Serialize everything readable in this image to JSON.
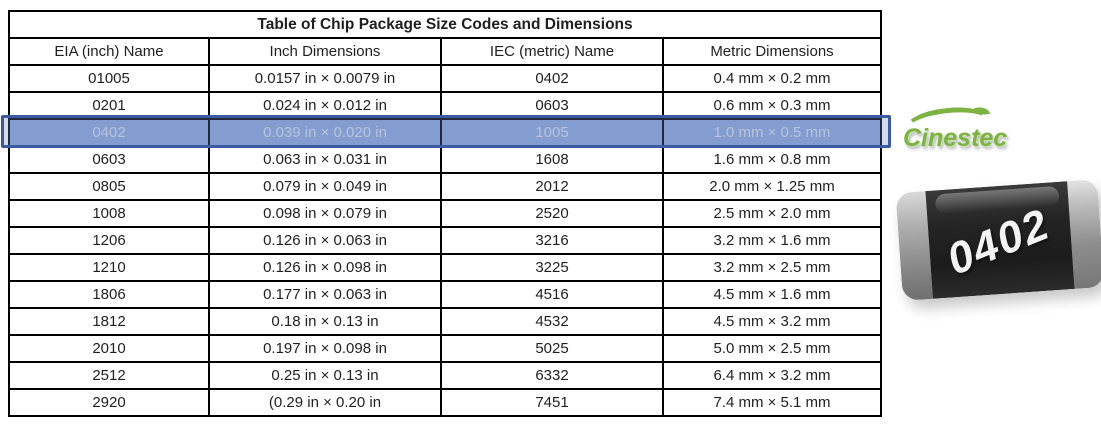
{
  "table": {
    "title": "Table of Chip Package Size Codes and Dimensions",
    "headers": [
      "EIA (inch) Name",
      "Inch Dimensions",
      "IEC (metric) Name",
      "Metric Dimensions"
    ],
    "rows": [
      [
        "01005",
        "0.0157 in × 0.0079 in",
        "0402",
        "0.4 mm × 0.2 mm"
      ],
      [
        "0201",
        "0.024 in × 0.012 in",
        "0603",
        "0.6 mm × 0.3 mm"
      ],
      [
        "0402",
        "0.039 in × 0.020 in",
        "1005",
        "1.0 mm × 0.5 mm"
      ],
      [
        "0603",
        "0.063 in × 0.031 in",
        "1608",
        "1.6 mm × 0.8 mm"
      ],
      [
        "0805",
        "0.079 in × 0.049 in",
        "2012",
        "2.0 mm × 1.25 mm"
      ],
      [
        "1008",
        "0.098 in × 0.079 in",
        "2520",
        "2.5 mm × 2.0 mm"
      ],
      [
        "1206",
        "0.126 in × 0.063 in",
        "3216",
        "3.2 mm × 1.6 mm"
      ],
      [
        "1210",
        "0.126 in × 0.098 in",
        "3225",
        "3.2 mm × 2.5 mm"
      ],
      [
        "1806",
        "0.177 in × 0.063 in",
        "4516",
        "4.5 mm × 1.6 mm"
      ],
      [
        "1812",
        "0.18 in × 0.13 in",
        "4532",
        "4.5 mm × 3.2 mm"
      ],
      [
        "2010",
        "0.197 in × 0.098 in",
        "5025",
        "5.0 mm × 2.5 mm"
      ],
      [
        "2512",
        "0.25 in × 0.13 in",
        "6332",
        "6.4 mm × 3.2 mm"
      ],
      [
        "2920",
        "(0.29 in × 0.20 in",
        "7451",
        "7.4 mm × 5.1 mm"
      ]
    ],
    "highlighted_row_index": 2,
    "highlight_border_color": "#3a5ba3",
    "highlight_fill_color": "#8ea7d6"
  },
  "logo": {
    "text": "Cinestec",
    "color": "#7cb342",
    "icon": "leaf-swoosh-icon"
  },
  "chip": {
    "label": "0402",
    "body_color": "#1f1f1f",
    "terminal_color": "#9a9a9a"
  }
}
